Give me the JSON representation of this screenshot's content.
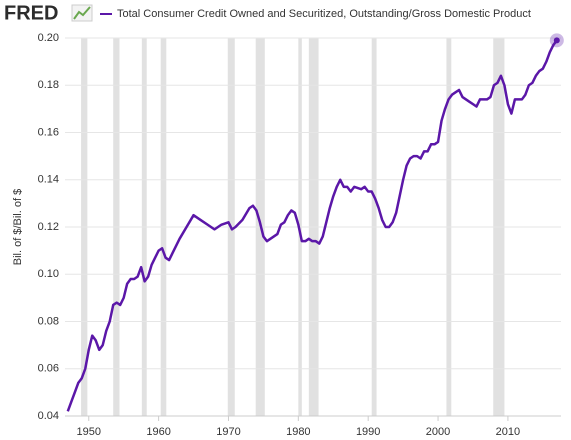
{
  "logo": "FRED",
  "chart_data": {
    "type": "line",
    "title": "Total Consumer Credit Owned and Securitized, Outstanding/Gross Domestic Product",
    "y_label": "Bil. of $/Bil. of $",
    "x": [
      1947,
      1947.5,
      1948,
      1948.5,
      1949,
      1949.5,
      1950,
      1950.5,
      1951,
      1951.5,
      1952,
      1952.5,
      1953,
      1953.5,
      1954,
      1954.5,
      1955,
      1955.5,
      1956,
      1956.5,
      1957,
      1957.5,
      1958,
      1958.5,
      1959,
      1959.5,
      1960,
      1960.5,
      1961,
      1961.5,
      1962,
      1963,
      1964,
      1965,
      1966,
      1967,
      1968,
      1969,
      1970,
      1970.5,
      1971,
      1972,
      1973,
      1973.5,
      1974,
      1974.5,
      1975,
      1975.5,
      1976,
      1977,
      1977.5,
      1978,
      1978.5,
      1979,
      1979.5,
      1980,
      1980.5,
      1981,
      1981.5,
      1982,
      1982.5,
      1983,
      1983.5,
      1984,
      1984.5,
      1985,
      1985.5,
      1986,
      1986.5,
      1987,
      1987.5,
      1988,
      1989,
      1989.5,
      1990,
      1990.5,
      1991,
      1991.5,
      1992,
      1992.5,
      1993,
      1993.5,
      1994,
      1994.5,
      1995,
      1995.5,
      1996,
      1996.5,
      1997,
      1997.5,
      1998,
      1998.5,
      1999,
      1999.5,
      2000,
      2000.5,
      2001,
      2001.5,
      2002,
      2002.5,
      2003,
      2003.5,
      2004,
      2004.5,
      2005,
      2005.5,
      2006,
      2006.5,
      2007,
      2007.5,
      2008,
      2008.5,
      2009,
      2009.5,
      2010,
      2010.5,
      2011,
      2011.5,
      2012,
      2012.5,
      2013,
      2013.5,
      2014,
      2014.5,
      2015,
      2015.5,
      2016,
      2016.5,
      2017
    ],
    "series": [
      {
        "name": "Total Consumer Credit Owned and Securitized, Outstanding/Gross Domestic Product",
        "color": "#5b17a8",
        "values": [
          0.042,
          0.046,
          0.05,
          0.054,
          0.056,
          0.06,
          0.068,
          0.074,
          0.072,
          0.068,
          0.07,
          0.076,
          0.08,
          0.087,
          0.088,
          0.087,
          0.09,
          0.096,
          0.098,
          0.098,
          0.099,
          0.103,
          0.097,
          0.099,
          0.104,
          0.107,
          0.11,
          0.111,
          0.107,
          0.106,
          0.109,
          0.115,
          0.12,
          0.125,
          0.123,
          0.121,
          0.119,
          0.121,
          0.122,
          0.119,
          0.12,
          0.123,
          0.128,
          0.129,
          0.127,
          0.122,
          0.116,
          0.114,
          0.115,
          0.117,
          0.121,
          0.122,
          0.125,
          0.127,
          0.126,
          0.121,
          0.114,
          0.114,
          0.115,
          0.114,
          0.114,
          0.113,
          0.116,
          0.122,
          0.128,
          0.133,
          0.137,
          0.14,
          0.137,
          0.137,
          0.135,
          0.137,
          0.136,
          0.137,
          0.135,
          0.135,
          0.132,
          0.128,
          0.123,
          0.12,
          0.12,
          0.122,
          0.126,
          0.133,
          0.14,
          0.146,
          0.149,
          0.15,
          0.15,
          0.149,
          0.152,
          0.152,
          0.155,
          0.155,
          0.156,
          0.165,
          0.17,
          0.174,
          0.176,
          0.177,
          0.178,
          0.175,
          0.174,
          0.173,
          0.172,
          0.171,
          0.174,
          0.174,
          0.174,
          0.175,
          0.18,
          0.181,
          0.184,
          0.18,
          0.172,
          0.168,
          0.174,
          0.174,
          0.174,
          0.176,
          0.18,
          0.181,
          0.184,
          0.186,
          0.187,
          0.19,
          0.194,
          0.197,
          0.199
        ]
      }
    ],
    "recessions": [
      [
        1948.9,
        1949.8
      ],
      [
        1953.5,
        1954.4
      ],
      [
        1957.6,
        1958.3
      ],
      [
        1960.3,
        1961.1
      ],
      [
        1969.9,
        1970.9
      ],
      [
        1973.9,
        1975.2
      ],
      [
        1980.0,
        1980.5
      ],
      [
        1981.5,
        1982.9
      ],
      [
        1990.5,
        1991.2
      ],
      [
        2001.2,
        2001.9
      ],
      [
        2007.9,
        2009.5
      ]
    ],
    "recession_color": "#e1e1e1",
    "xlim": [
      1946.6,
      2017.6
    ],
    "xticks": [
      1950,
      1960,
      1970,
      1980,
      1990,
      2000,
      2010
    ],
    "ylim": [
      0.04,
      0.2
    ],
    "yticks": [
      0.04,
      0.06,
      0.08,
      {
        "value": 0.1,
        "label": "0.10"
      },
      0.12,
      0.14,
      0.16,
      0.18,
      {
        "value": 0.2,
        "label": "0.20"
      }
    ],
    "grid": true
  }
}
